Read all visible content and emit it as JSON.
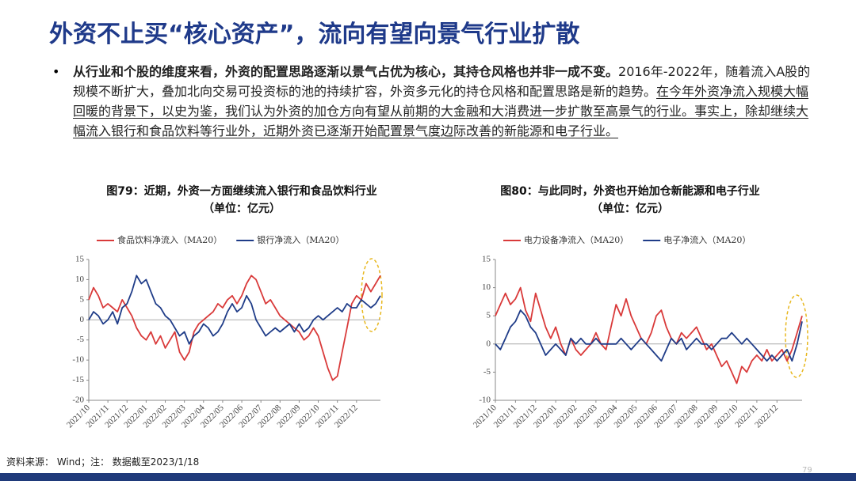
{
  "slide": {
    "title": "外资不止买“核心资产”，流向有望向景气行业扩散",
    "bullet_bold": "从行业和个股的维度来看，外资的配置思路逐渐以景气占优为核心，其持仓风格也并非一成不变。",
    "bullet_normal": "2016年-2022年，随着流入A股的规模不断扩大，叠加北向交易可投资标的池的持续扩容，外资多元化的持仓风格和配置思路是新的趋势。",
    "bullet_underline": "在今年外资净流入规模大幅回暖的背景下，以史为鉴，我们认为外资的加仓方向有望从前期的大金融和大消费进一步扩散至高景气的行业。事实上，除却继续大幅流入银行和食品饮料等行业外，近期外资已逐渐开始配置景气度边际改善的新能源和电子行业。",
    "source": "资料来源： Wind；注： 数据截至2023/1/18",
    "page_number": "79"
  },
  "chart_data": [
    {
      "type": "line",
      "title": "图79：近期，外资一方面继续流入银行和食品饮料行业",
      "subtitle": "（单位：亿元）",
      "categories": [
        "2021/10",
        null,
        null,
        null,
        "2021/11",
        null,
        null,
        null,
        "2021/12",
        null,
        null,
        null,
        "2022/01",
        null,
        null,
        null,
        "2022/02",
        null,
        null,
        null,
        "2022/03",
        null,
        null,
        null,
        "2022/04",
        null,
        null,
        null,
        "2022/05",
        null,
        null,
        null,
        "2022/06",
        null,
        null,
        null,
        "2022/07",
        null,
        null,
        null,
        "2022/08",
        null,
        null,
        null,
        "2022/09",
        null,
        null,
        null,
        "2022/10",
        null,
        null,
        null,
        "2022/11",
        null,
        null,
        null,
        "2022/12",
        null,
        null,
        null,
        null,
        null
      ],
      "series": [
        {
          "name": "食品饮料净流入（MA20）",
          "color": "#d93a3a",
          "values": [
            5,
            8,
            6,
            3,
            4,
            3,
            2,
            5,
            3,
            1,
            -2,
            -4,
            -5,
            -3,
            -6,
            -4,
            -7,
            -5,
            -3,
            -8,
            -10,
            -8,
            -3,
            -1,
            0,
            1,
            2,
            4,
            3,
            5,
            6,
            4,
            6,
            9,
            11,
            10,
            7,
            4,
            5,
            3,
            1,
            0,
            -1,
            -2,
            -3,
            -5,
            -4,
            -2,
            -4,
            -8,
            -12,
            -15,
            -14,
            -8,
            -2,
            4,
            6,
            5,
            9,
            7,
            9,
            11
          ]
        },
        {
          "name": "银行净流入（MA20）",
          "color": "#1f3c88",
          "values": [
            0,
            2,
            1,
            -1,
            0,
            2,
            -1,
            3,
            4,
            7,
            11,
            9,
            10,
            7,
            4,
            3,
            1,
            0,
            -2,
            -4,
            -3,
            -6,
            -4,
            -3,
            -1,
            -2,
            -4,
            -3,
            -1,
            2,
            4,
            2,
            3,
            6,
            4,
            0,
            -2,
            -4,
            -3,
            -2,
            -3,
            -2,
            -1,
            -3,
            -1,
            -3,
            -2,
            0,
            1,
            0,
            1,
            2,
            3,
            2,
            4,
            3,
            3,
            5,
            4,
            3,
            4,
            6
          ]
        }
      ],
      "ylim": [
        -20,
        15
      ],
      "yticks": [
        -20,
        -15,
        -10,
        -5,
        0,
        5,
        10,
        15
      ]
    },
    {
      "type": "line",
      "title": "图80：与此同时，外资也开始加仓新能源和电子行业",
      "subtitle": "（单位：亿元）",
      "categories": [
        "2021/10",
        null,
        null,
        null,
        "2021/11",
        null,
        null,
        null,
        "2021/12",
        null,
        null,
        null,
        "2022/01",
        null,
        null,
        null,
        "2022/02",
        null,
        null,
        null,
        "2022/03",
        null,
        null,
        null,
        "2022/04",
        null,
        null,
        null,
        "2022/05",
        null,
        null,
        null,
        "2022/06",
        null,
        null,
        null,
        "2022/07",
        null,
        null,
        null,
        "2022/08",
        null,
        null,
        null,
        "2022/09",
        null,
        null,
        null,
        "2022/10",
        null,
        null,
        null,
        "2022/11",
        null,
        null,
        null,
        "2022/12",
        null,
        null,
        null,
        null,
        null
      ],
      "series": [
        {
          "name": "电力设备净流入（MA20）",
          "color": "#d93a3a",
          "values": [
            5,
            7,
            9,
            7,
            8,
            10,
            6,
            4,
            9,
            6,
            3,
            1,
            3,
            0,
            -2,
            1,
            -1,
            -2,
            -1,
            0,
            2,
            0,
            -1,
            3,
            7,
            5,
            8,
            5,
            3,
            1,
            0,
            2,
            5,
            6,
            3,
            1,
            0,
            2,
            1,
            2,
            3,
            1,
            -1,
            0,
            -2,
            -4,
            -3,
            -5,
            -7,
            -4,
            -5,
            -3,
            -2,
            -3,
            -1,
            -3,
            -2,
            -1,
            -3,
            -1,
            2,
            5
          ]
        },
        {
          "name": "电子净流入（MA20）",
          "color": "#1f3c88",
          "values": [
            0,
            -1,
            1,
            3,
            4,
            6,
            5,
            3,
            2,
            0,
            -2,
            -1,
            0,
            -1,
            -2,
            1,
            0,
            1,
            0,
            0,
            1,
            0,
            0,
            0,
            0,
            1,
            0,
            -1,
            0,
            1,
            0,
            -1,
            -2,
            -3,
            -1,
            1,
            0,
            1,
            -1,
            0,
            1,
            0,
            0,
            -1,
            0,
            1,
            1,
            2,
            1,
            0,
            1,
            0,
            -1,
            -2,
            -3,
            -2,
            -3,
            -2,
            -1,
            -3,
            0,
            4
          ]
        }
      ],
      "ylim": [
        -10,
        15
      ],
      "yticks": [
        -10,
        -5,
        0,
        5,
        10,
        15
      ]
    }
  ]
}
